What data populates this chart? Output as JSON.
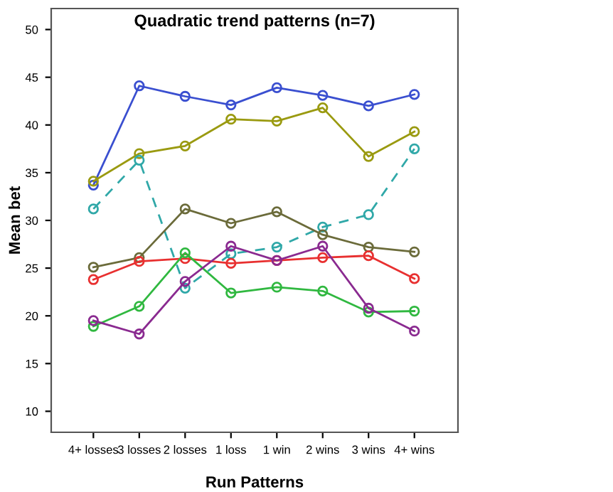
{
  "chart_data": {
    "type": "line",
    "title": "Quadratic trend patterns (n=7)",
    "xlabel": "Run Patterns",
    "ylabel": "Mean bet",
    "categories": [
      "4+ losses",
      "3 losses",
      "2 losses",
      "1 loss",
      "1 win",
      "2 wins",
      "3 wins",
      "4+ wins"
    ],
    "series": [
      {
        "color": "#3a4fd0",
        "values": [
          33.7,
          44.1,
          43.0,
          42.1,
          43.9,
          43.1,
          42.0,
          43.2
        ]
      },
      {
        "color": "#9a9a10",
        "values": [
          34.1,
          37.0,
          37.8,
          40.6,
          40.4,
          41.8,
          36.7,
          39.3
        ]
      },
      {
        "color": "#30a8a8",
        "line_style": "dashed",
        "values": [
          31.2,
          36.3,
          22.9,
          26.5,
          27.2,
          29.3,
          30.6,
          37.5
        ]
      },
      {
        "color": "#6b6b3a",
        "values": [
          25.1,
          26.1,
          31.2,
          29.7,
          30.9,
          28.5,
          27.2,
          26.7
        ]
      },
      {
        "color": "#e83030",
        "values": [
          23.8,
          25.7,
          26.0,
          25.5,
          25.8,
          26.1,
          26.3,
          23.9
        ]
      },
      {
        "color": "#30b840",
        "values": [
          18.9,
          21.0,
          26.6,
          22.4,
          23.0,
          22.6,
          20.4,
          20.5
        ]
      },
      {
        "color": "#8a2a90",
        "values": [
          19.5,
          18.1,
          23.6,
          27.3,
          25.8,
          27.3,
          20.8,
          18.4
        ]
      }
    ],
    "ylim": [
      7.8,
      52.2
    ],
    "yticks": [
      10,
      15,
      20,
      25,
      30,
      35,
      40,
      45,
      50
    ],
    "marker": "circle",
    "line_style": "solid",
    "grid": false,
    "legend": false
  }
}
